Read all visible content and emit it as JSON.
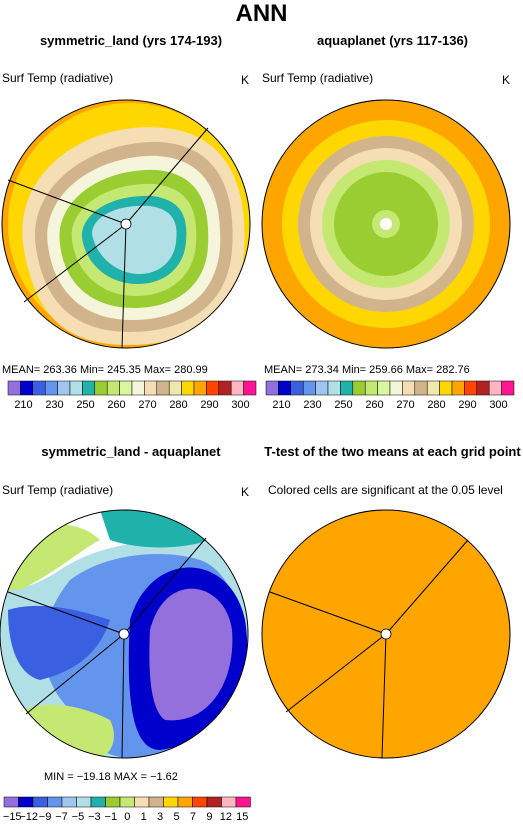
{
  "main_title": "ANN",
  "panels": [
    {
      "title": "symmetric_land (yrs 174-193)",
      "variable": "Surf Temp (radiative)",
      "units": "K",
      "stats": "MEAN= 263.36   Min= 245.35   Max= 280.99"
    },
    {
      "title": "aquaplanet (yrs 117-136)",
      "variable": "Surf Temp (radiative)",
      "units": "K",
      "stats": "MEAN= 273.34   Min= 259.66   Max= 282.76"
    },
    {
      "title": "symmetric_land - aquaplanet",
      "variable": "Surf Temp (radiative)",
      "units": "K",
      "stats": "MIN = −19.18  MAX =  −1.62"
    },
    {
      "title": "T-test of the two means at each grid point",
      "subtitle": "Colored cells are significant at the 0.05 level"
    }
  ],
  "chart_data": [
    {
      "type": "heatmap",
      "title": "symmetric_land (yrs 174-193)",
      "variable": "Surf Temp (radiative)",
      "units": "K",
      "projection": "polar",
      "stats": {
        "mean": 263.36,
        "min": 245.35,
        "max": 280.99
      },
      "levels": [
        210,
        215,
        220,
        225,
        230,
        235,
        240,
        245,
        250,
        255,
        260,
        265,
        270,
        275,
        280,
        285,
        290,
        295,
        300,
        305
      ],
      "colorbar_labels": [
        "210",
        "230",
        "250",
        "260",
        "270",
        "280",
        "290",
        "300"
      ],
      "colors": [
        "#9370DB",
        "#0000CD",
        "#3A5FE0",
        "#6495ED",
        "#9FC5F0",
        "#B0E0E6",
        "#20B2AA",
        "#9ACD32",
        "#C5E873",
        "#D8F7A0",
        "#F5F5DC",
        "#F5DEB3",
        "#D2B48C",
        "#EEE8AA",
        "#FFD700",
        "#FFA500",
        "#FF4500",
        "#B22222",
        "#FFB6C1",
        "#FF1493"
      ]
    },
    {
      "type": "heatmap",
      "title": "aquaplanet (yrs 117-136)",
      "variable": "Surf Temp (radiative)",
      "units": "K",
      "projection": "polar",
      "stats": {
        "mean": 273.34,
        "min": 259.66,
        "max": 282.76
      },
      "levels": [
        210,
        215,
        220,
        225,
        230,
        235,
        240,
        245,
        250,
        255,
        260,
        265,
        270,
        275,
        280,
        285,
        290,
        295,
        300,
        305
      ],
      "colorbar_labels": [
        "210",
        "230",
        "250",
        "260",
        "270",
        "280",
        "290",
        "300"
      ],
      "colors": [
        "#9370DB",
        "#0000CD",
        "#3A5FE0",
        "#6495ED",
        "#9FC5F0",
        "#B0E0E6",
        "#20B2AA",
        "#9ACD32",
        "#C5E873",
        "#D8F7A0",
        "#F5F5DC",
        "#F5DEB3",
        "#D2B48C",
        "#EEE8AA",
        "#FFD700",
        "#FFA500",
        "#FF4500",
        "#B22222",
        "#FFB6C1",
        "#FF1493"
      ]
    },
    {
      "type": "heatmap",
      "title": "symmetric_land - aquaplanet",
      "variable": "Surf Temp (radiative)",
      "units": "K",
      "projection": "polar",
      "stats": {
        "min": -19.18,
        "max": -1.62
      },
      "levels": [
        -15,
        -12,
        -9,
        -7,
        -5,
        -3,
        -1,
        0,
        1,
        3,
        5,
        7,
        9,
        12,
        15
      ],
      "colorbar_labels": [
        "−15",
        "−12",
        "−9",
        "−7",
        "−5",
        "−3",
        "−1",
        "0",
        "1",
        "3",
        "5",
        "7",
        "9",
        "12",
        "15"
      ],
      "colors": [
        "#9370DB",
        "#0000CD",
        "#3A5FE0",
        "#6495ED",
        "#9FC5F0",
        "#B0E0E6",
        "#20B2AA",
        "#9ACD32",
        "#C5E873",
        "#F5DEB3",
        "#D2B48C",
        "#FFD700",
        "#FFA500",
        "#FF4500",
        "#B22222",
        "#FFB6C1",
        "#FF1493"
      ]
    },
    {
      "type": "heatmap",
      "title": "T-test of the two means at each grid point",
      "projection": "polar",
      "significant_color": "#FFA500",
      "note": "Colored cells are significant at the 0.05 level"
    }
  ]
}
